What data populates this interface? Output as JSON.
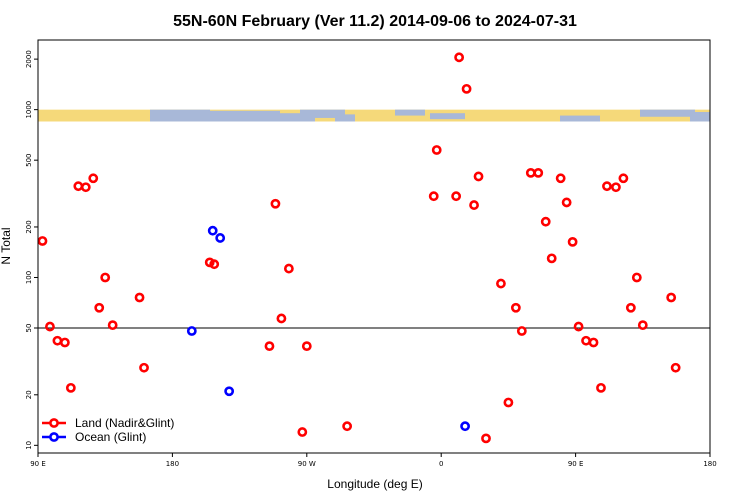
{
  "chart_data": {
    "type": "scatter",
    "title": "55N-60N February (Ver 11.2)   2014-09-06 to 2024-07-31",
    "xlabel": "Longitude (deg E)",
    "ylabel": "N Total",
    "x_ticks": [
      {
        "value": 90,
        "label": "90 E"
      },
      {
        "value": 180,
        "label": "180"
      },
      {
        "value": 270,
        "label": "90 W"
      },
      {
        "value": 360,
        "label": "0"
      },
      {
        "value": 450,
        "label": "90 E"
      },
      {
        "value": 540,
        "label": "180"
      }
    ],
    "y_ticks": [
      10,
      20,
      50,
      100,
      200,
      500,
      1000,
      2000
    ],
    "xlim": [
      90,
      540
    ],
    "ylim_log": [
      9,
      2600
    ],
    "y_scale": "log",
    "reference_line": 50,
    "map_strip": {
      "y_range": [
        850,
        1000
      ],
      "land_color": "#f5d97a",
      "ocean_color": "#a8b8d8"
    },
    "legend_position": "bottom-left",
    "series": [
      {
        "name": "Land (Nadir&Glint)",
        "color": "#ff0000",
        "points": [
          [
            93,
            165
          ],
          [
            98,
            51
          ],
          [
            103,
            42
          ],
          [
            108,
            41
          ],
          [
            112,
            22
          ],
          [
            117,
            350
          ],
          [
            122,
            345
          ],
          [
            127,
            390
          ],
          [
            131,
            66
          ],
          [
            135,
            100
          ],
          [
            140,
            52
          ],
          [
            158,
            76
          ],
          [
            161,
            29
          ],
          [
            205,
            123
          ],
          [
            208,
            120
          ],
          [
            245,
            39
          ],
          [
            249,
            275
          ],
          [
            253,
            57
          ],
          [
            258,
            113
          ],
          [
            267,
            12
          ],
          [
            270,
            39
          ],
          [
            297,
            13
          ],
          [
            355,
            305
          ],
          [
            357,
            575
          ],
          [
            370,
            305
          ],
          [
            382,
            270
          ],
          [
            385,
            400
          ],
          [
            390,
            11
          ],
          [
            400,
            92
          ],
          [
            405,
            18
          ],
          [
            410,
            66
          ],
          [
            414,
            48
          ],
          [
            420,
            420
          ],
          [
            425,
            420
          ],
          [
            430,
            215
          ],
          [
            434,
            130
          ],
          [
            440,
            390
          ],
          [
            444,
            280
          ],
          [
            448,
            163
          ],
          [
            452,
            51
          ],
          [
            457,
            42
          ],
          [
            462,
            41
          ],
          [
            467,
            22
          ],
          [
            471,
            350
          ],
          [
            477,
            345
          ],
          [
            482,
            390
          ],
          [
            487,
            66
          ],
          [
            491,
            100
          ],
          [
            495,
            52
          ],
          [
            514,
            76
          ],
          [
            517,
            29
          ]
        ]
      },
      {
        "name": "Ocean (Glint)",
        "color": "#0000ff",
        "points": [
          [
            193,
            48
          ],
          [
            207,
            190
          ],
          [
            212,
            172
          ],
          [
            218,
            21
          ],
          [
            376,
            13
          ]
        ]
      },
      {
        "name": "",
        "color": "#ff0000",
        "points": [
          [
            372,
            2050
          ],
          [
            377,
            1330
          ]
        ]
      }
    ]
  }
}
